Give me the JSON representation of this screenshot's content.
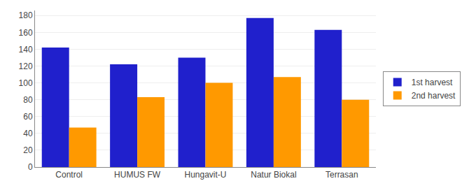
{
  "chart_data": {
    "type": "bar",
    "categories": [
      "Control",
      "HUMUS FW",
      "Hungavit-U",
      "Natur Biokal",
      "Terrasan"
    ],
    "series": [
      {
        "name": "1st harvest",
        "color": "#2020cc",
        "values": [
          142,
          122,
          130,
          177,
          163
        ]
      },
      {
        "name": "2nd harvest",
        "color": "#ff9900",
        "values": [
          47,
          83,
          100,
          107,
          80
        ]
      }
    ],
    "ylim": [
      0,
      186
    ],
    "yticks": [
      0,
      20,
      40,
      60,
      80,
      100,
      120,
      140,
      160,
      180
    ],
    "grid": true,
    "legend": "right"
  }
}
